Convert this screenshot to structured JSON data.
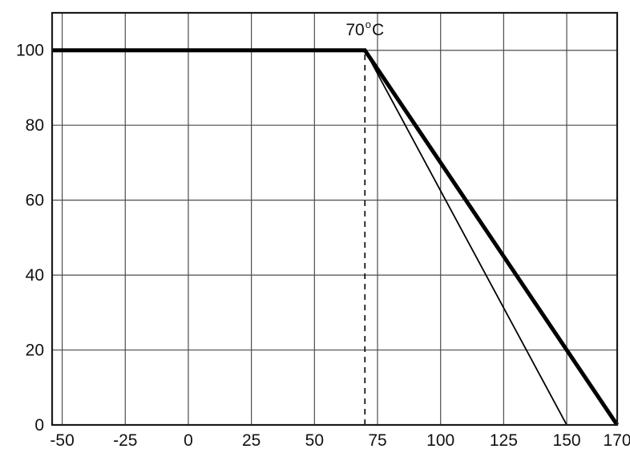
{
  "chart_data": {
    "type": "line",
    "title": "",
    "xlabel": "",
    "ylabel": "",
    "x_axis": {
      "min": -50,
      "max": 170,
      "ticks": [
        -50,
        -25,
        0,
        25,
        50,
        75,
        100,
        125,
        150,
        170
      ],
      "tick_labels": [
        "-50",
        "-25",
        "0",
        "25",
        "50",
        "75",
        "100",
        "125",
        "150",
        "170"
      ]
    },
    "y_axis": {
      "min": 0,
      "max": 100,
      "ticks": [
        0,
        20,
        40,
        60,
        80,
        100
      ],
      "tick_labels": [
        "0",
        "20",
        "40",
        "60",
        "80",
        "100"
      ]
    },
    "frame": {
      "xmin": -54,
      "xmax": 170,
      "ymin": 0,
      "ymax": 110
    },
    "grid": "on",
    "legend": "none",
    "annotation": {
      "text": "70°C",
      "parts": {
        "base": "70",
        "sup": "o",
        "unit": "C"
      },
      "x": 70,
      "placement": "above-knee"
    },
    "knee_line": {
      "x": 70,
      "y_from": 0,
      "y_to": 100,
      "style": "dashed"
    },
    "series": [
      {
        "name": "derating-upper",
        "style": "thick",
        "points": [
          [
            -50,
            100
          ],
          [
            70,
            100
          ],
          [
            170,
            0
          ]
        ]
      },
      {
        "name": "derating-lower",
        "style": "thin",
        "points": [
          [
            -50,
            100
          ],
          [
            70,
            100
          ],
          [
            150,
            0
          ]
        ]
      }
    ],
    "colors": {
      "line": "#000000",
      "grid": "#4d4d4d",
      "frame": "#1a1a1a",
      "background": "#ffffff"
    }
  }
}
